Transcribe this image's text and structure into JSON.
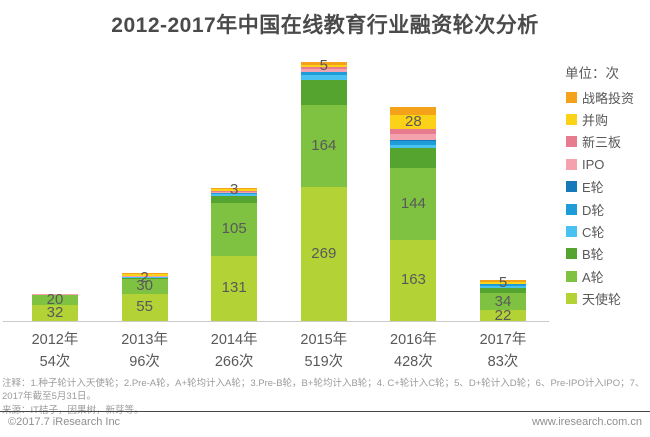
{
  "title": "2012-2017年中国在线教育行业融资轮次分析",
  "legend": {
    "unit_label": "单位：次",
    "items": [
      {
        "label": "战略投资",
        "color": "#F5A21B"
      },
      {
        "label": "并购",
        "color": "#FCD218"
      },
      {
        "label": "新三板",
        "color": "#E77C8E"
      },
      {
        "label": "IPO",
        "color": "#F4A2AE"
      },
      {
        "label": "E轮",
        "color": "#1779BA"
      },
      {
        "label": "D轮",
        "color": "#1E9CD8"
      },
      {
        "label": "C轮",
        "color": "#49C2F1"
      },
      {
        "label": "B轮",
        "color": "#55A42F"
      },
      {
        "label": "A轮",
        "color": "#7FC241"
      },
      {
        "label": "天使轮",
        "color": "#B2D235"
      }
    ]
  },
  "chart_data": {
    "type": "bar",
    "stacked": true,
    "unit": "次",
    "title": "2012-2017年中国在线教育行业融资轮次分析",
    "categories": [
      "2012年",
      "2013年",
      "2014年",
      "2015年",
      "2016年",
      "2017年"
    ],
    "category_totals": [
      54,
      96,
      266,
      519,
      428,
      83
    ],
    "category_total_labels": [
      "54次",
      "96次",
      "266次",
      "519次",
      "428次",
      "83次"
    ],
    "series": [
      {
        "name": "天使轮",
        "color": "#B2D235",
        "values": [
          32,
          55,
          131,
          269,
          163,
          22
        ]
      },
      {
        "name": "A轮",
        "color": "#7FC241",
        "values": [
          20,
          30,
          105,
          164,
          144,
          34
        ]
      },
      {
        "name": "B轮",
        "color": "#55A42F",
        "values": [
          0,
          2,
          14,
          50,
          40,
          10
        ]
      },
      {
        "name": "C轮",
        "color": "#49C2F1",
        "values": [
          0,
          2,
          5,
          10,
          6,
          4
        ]
      },
      {
        "name": "D轮",
        "color": "#1E9CD8",
        "values": [
          0,
          0,
          2,
          6,
          8,
          4
        ]
      },
      {
        "name": "E轮",
        "color": "#1779BA",
        "values": [
          0,
          0,
          0,
          0,
          2,
          0
        ]
      },
      {
        "name": "IPO",
        "color": "#F4A2AE",
        "values": [
          2,
          2,
          2,
          6,
          12,
          0
        ]
      },
      {
        "name": "新三板",
        "color": "#E77C8E",
        "values": [
          0,
          0,
          2,
          3,
          10,
          0
        ]
      },
      {
        "name": "并购",
        "color": "#FCD218",
        "values": [
          0,
          3,
          3,
          5,
          28,
          5
        ]
      },
      {
        "name": "战略投资",
        "color": "#F5A21B",
        "values": [
          0,
          2,
          2,
          6,
          15,
          4
        ]
      }
    ],
    "visible_segment_labels": [
      [
        "天使轮",
        "A轮"
      ],
      [
        "天使轮",
        "A轮",
        "B轮"
      ],
      [
        "天使轮",
        "A轮",
        "并购"
      ],
      [
        "天使轮",
        "A轮",
        "并购"
      ],
      [
        "天使轮",
        "A轮",
        "并购"
      ],
      [
        "天使轮",
        "A轮",
        "并购"
      ]
    ],
    "ylim": [
      0,
      560
    ],
    "grid": false,
    "legend_position": "right"
  },
  "footnote": {
    "lines": [
      "注释：1.种子轮计入天使轮；2.Pre-A轮，A+轮均计入A轮；3.Pre-B轮，B+轮均计入B轮；4. C+轮计入C轮；5、D+轮计入D轮；6、Pre-IPO计入IPO；7、2017年截至5月31日。",
      "来源：IT桔子，因果树，新芽等。"
    ]
  },
  "footer": {
    "left": "©2017.7 iResearch Inc",
    "right": "www.iresearch.com.cn"
  }
}
